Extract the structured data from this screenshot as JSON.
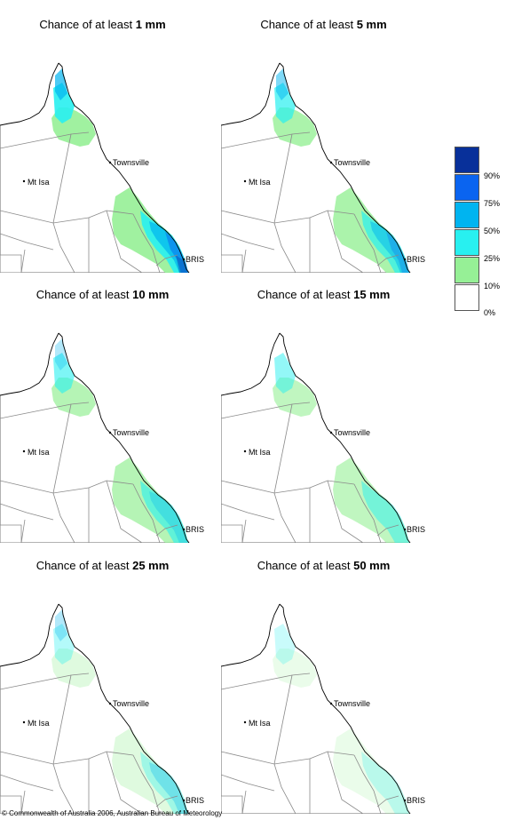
{
  "panels": [
    {
      "prefix": "Chance of at least ",
      "amount": "1 mm",
      "cover": {
        "green": 0.9,
        "cyan": 0.9,
        "lblue": 0.7,
        "mblue": 0.5,
        "dblue": 0.35
      }
    },
    {
      "prefix": "Chance of at least ",
      "amount": "5 mm",
      "cover": {
        "green": 0.8,
        "cyan": 0.7,
        "lblue": 0.5,
        "mblue": 0.3,
        "dblue": 0.0
      }
    },
    {
      "prefix": "Chance of at least ",
      "amount": "10 mm",
      "cover": {
        "green": 0.7,
        "cyan": 0.6,
        "lblue": 0.3,
        "mblue": 0.0,
        "dblue": 0.0
      }
    },
    {
      "prefix": "Chance of at least ",
      "amount": "15 mm",
      "cover": {
        "green": 0.6,
        "cyan": 0.5,
        "lblue": 0.0,
        "mblue": 0.0,
        "dblue": 0.0
      }
    },
    {
      "prefix": "Chance of at least ",
      "amount": "25 mm",
      "cover": {
        "green": 0.3,
        "cyan": 0.35,
        "lblue": 0.3,
        "mblue": 0.0,
        "dblue": 0.0
      }
    },
    {
      "prefix": "Chance of at least ",
      "amount": "50 mm",
      "cover": {
        "green": 0.2,
        "cyan": 0.25,
        "lblue": 0.0,
        "mblue": 0.0,
        "dblue": 0.0
      }
    }
  ],
  "places": {
    "townsville": "Townsville",
    "mt_isa": "Mt Isa",
    "brisbane": "BRIS"
  },
  "legend": {
    "labels": [
      "90%",
      "75%",
      "50%",
      "25%",
      "10%",
      "0%"
    ],
    "colors": [
      "#08309a",
      "#0a64f0",
      "#00b4f0",
      "#28f0f0",
      "#96f096",
      "#ffffff"
    ]
  },
  "copyright": "© Commonwealth of Australia 2006, Australian Bureau of Meteorology"
}
